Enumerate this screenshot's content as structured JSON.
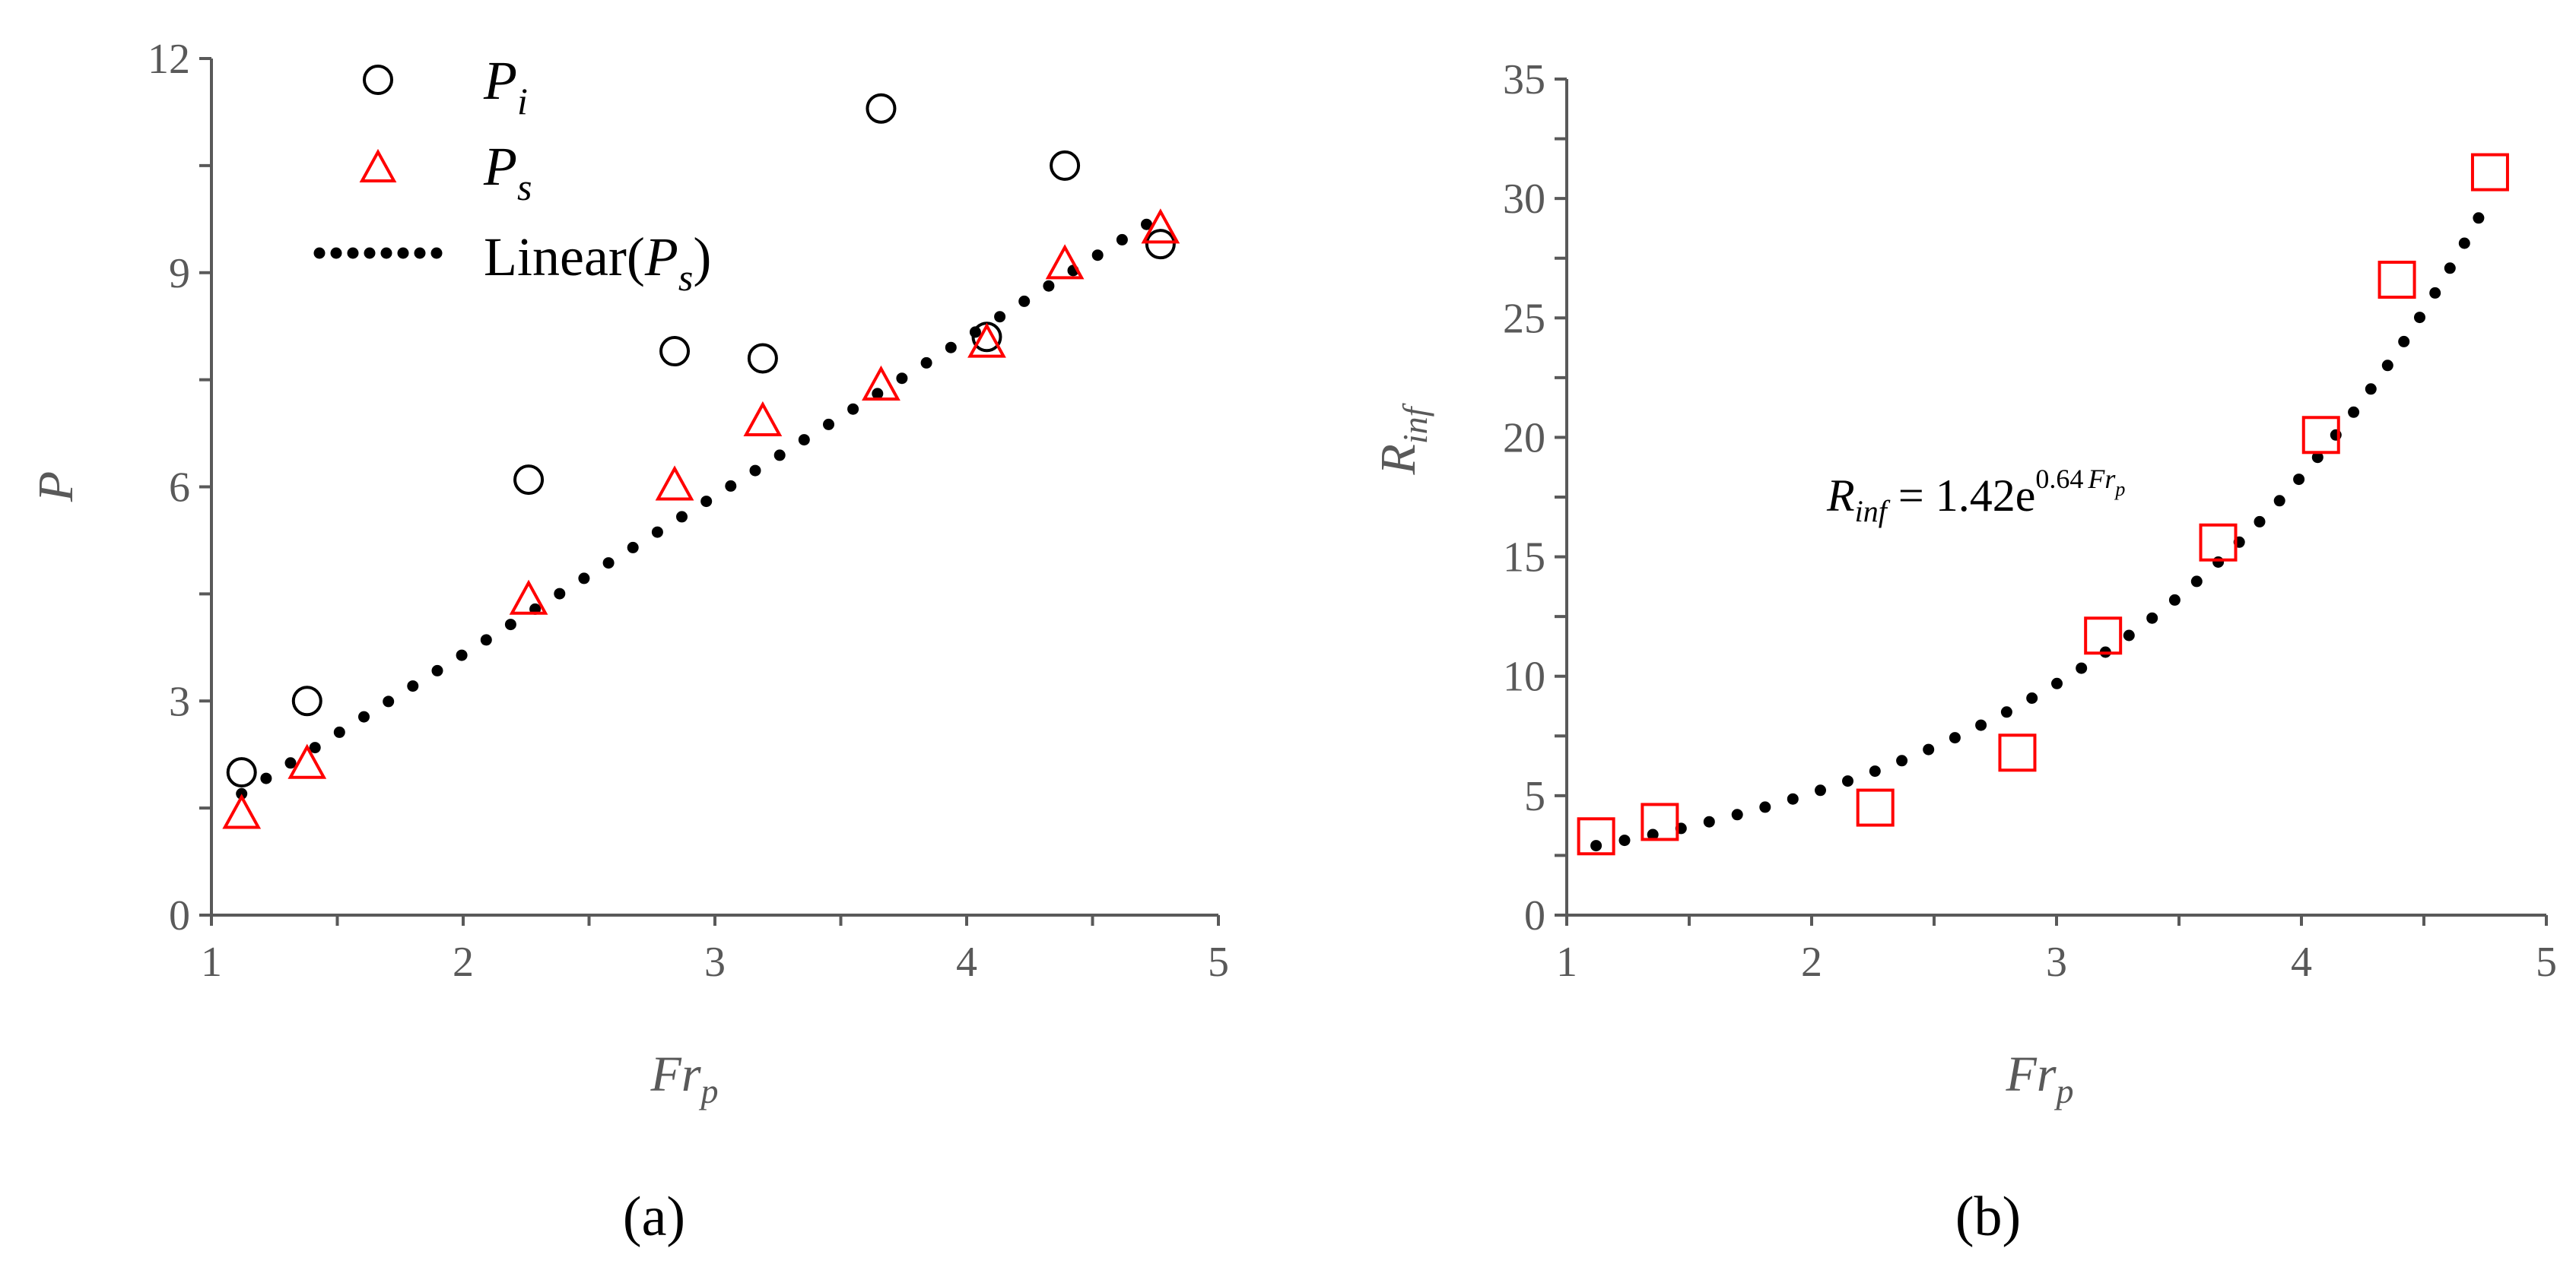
{
  "chart_data": [
    {
      "type": "scatter",
      "caption": "(a)",
      "xlabel": "Fr",
      "xlabel_sub": "p",
      "ylabel": "P",
      "xlim": [
        1,
        5
      ],
      "ylim": [
        0,
        12
      ],
      "xticks": [
        1,
        2,
        3,
        4,
        5
      ],
      "yticks": [
        0,
        3,
        6,
        9,
        12
      ],
      "legend_position": "top-left",
      "series": [
        {
          "name": "P",
          "name_sub": "i",
          "marker": "circle",
          "color": "#000000",
          "x": [
            1.12,
            1.38,
            2.26,
            2.84,
            3.19,
            3.66,
            4.08,
            4.39,
            4.77
          ],
          "y": [
            2.0,
            3.0,
            6.1,
            7.9,
            7.8,
            11.3,
            8.1,
            10.5,
            9.4
          ]
        },
        {
          "name": "P",
          "name_sub": "s",
          "marker": "triangle",
          "color": "#ff0000",
          "x": [
            1.12,
            1.38,
            2.26,
            2.84,
            3.19,
            3.66,
            4.08,
            4.39,
            4.77
          ],
          "y": [
            1.4,
            2.1,
            4.4,
            6.0,
            6.9,
            7.4,
            8.0,
            9.1,
            9.6
          ]
        },
        {
          "name": "Linear(",
          "name_var": "P",
          "name_sub": "s",
          "name_end": ")",
          "marker": "dotted-line",
          "color": "#000000",
          "fit": {
            "kind": "linear",
            "x_range": [
              1.12,
              4.77
            ],
            "y_range": [
              1.7,
              9.8
            ]
          }
        }
      ]
    },
    {
      "type": "scatter",
      "caption": "(b)",
      "xlabel": "Fr",
      "xlabel_sub": "p",
      "ylabel": "R",
      "ylabel_sub": "inf",
      "xlim": [
        1,
        5
      ],
      "ylim": [
        0,
        35
      ],
      "xticks": [
        1,
        2,
        3,
        4,
        5
      ],
      "yticks": [
        0,
        5,
        10,
        15,
        20,
        25,
        30,
        35
      ],
      "annotation": {
        "lhs": "R",
        "lhs_sub": "inf",
        "mid": " = 1.42e",
        "exp_a": "0.64",
        "exp_b": "Fr",
        "exp_sub": "p"
      },
      "series": [
        {
          "marker": "square",
          "color": "#ff0000",
          "x": [
            1.12,
            1.38,
            2.26,
            2.84,
            3.19,
            3.66,
            4.08,
            4.39,
            4.77
          ],
          "y": [
            3.3,
            3.9,
            4.5,
            6.8,
            11.7,
            15.6,
            20.1,
            26.6,
            31.1
          ]
        },
        {
          "marker": "dotted-line",
          "color": "#000000",
          "fit": {
            "kind": "exponential",
            "a": 1.42,
            "b": 0.64,
            "x_range": [
              1.12,
              4.77
            ]
          }
        }
      ]
    }
  ]
}
